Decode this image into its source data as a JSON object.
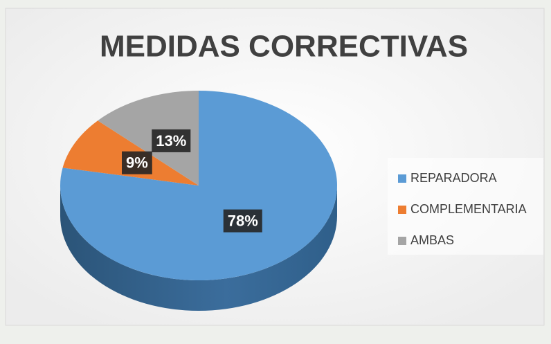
{
  "chart_data": {
    "type": "pie",
    "title": "MEDIDAS CORRECTIVAS",
    "categories": [
      "REPARADORA",
      "COMPLEMENTARIA",
      "AMBAS"
    ],
    "values": [
      78,
      9,
      13
    ],
    "value_labels": [
      "78%",
      "9%",
      "13%"
    ],
    "colors": [
      "#5b9bd5",
      "#ed7d31",
      "#a5a5a5"
    ],
    "legend": "right"
  }
}
